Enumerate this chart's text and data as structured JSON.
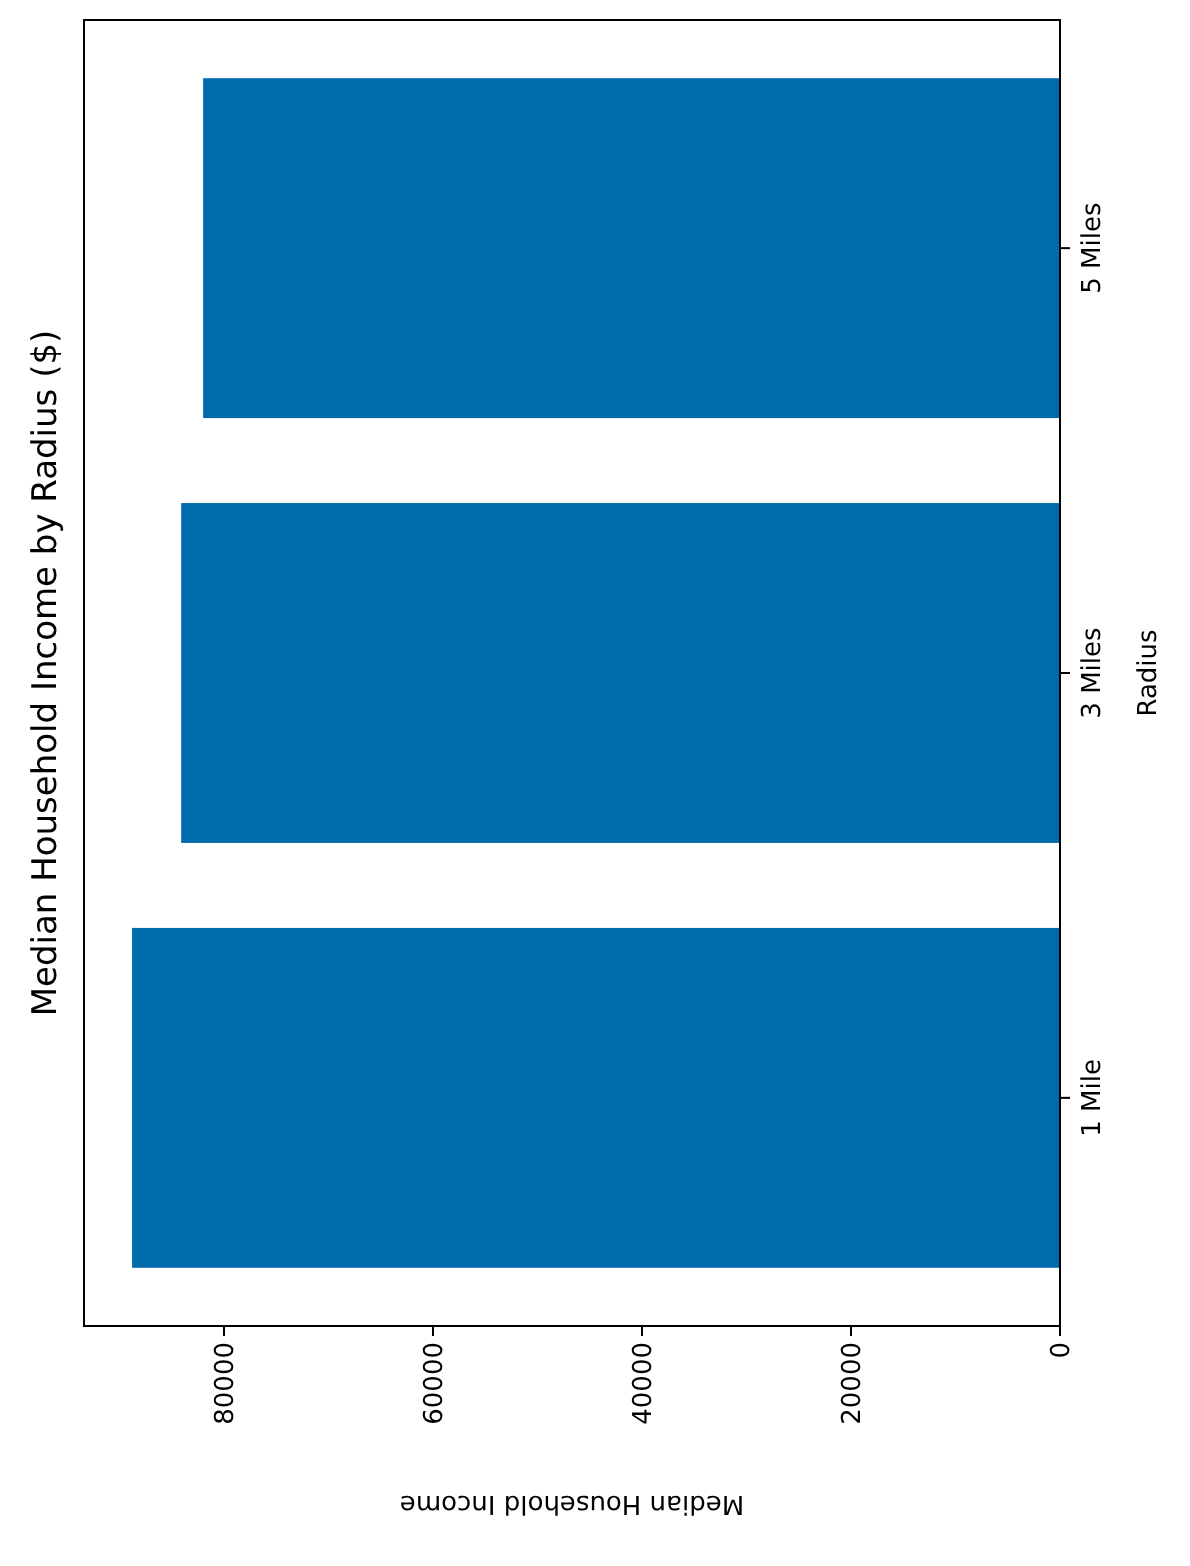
{
  "chart_data": {
    "type": "bar",
    "orientation": "horizontal",
    "title": "Median Household Income by Radius ($)",
    "xlabel": "Median Household Income",
    "ylabel": "Radius",
    "categories": [
      "5 Miles",
      "3 Miles",
      "1 Mile"
    ],
    "values": [
      82000,
      84100,
      88800
    ],
    "color": "#006bab",
    "xlim": [
      93400,
      0
    ],
    "xticks": [
      0,
      20000,
      40000,
      60000,
      80000
    ],
    "grid": false
  }
}
